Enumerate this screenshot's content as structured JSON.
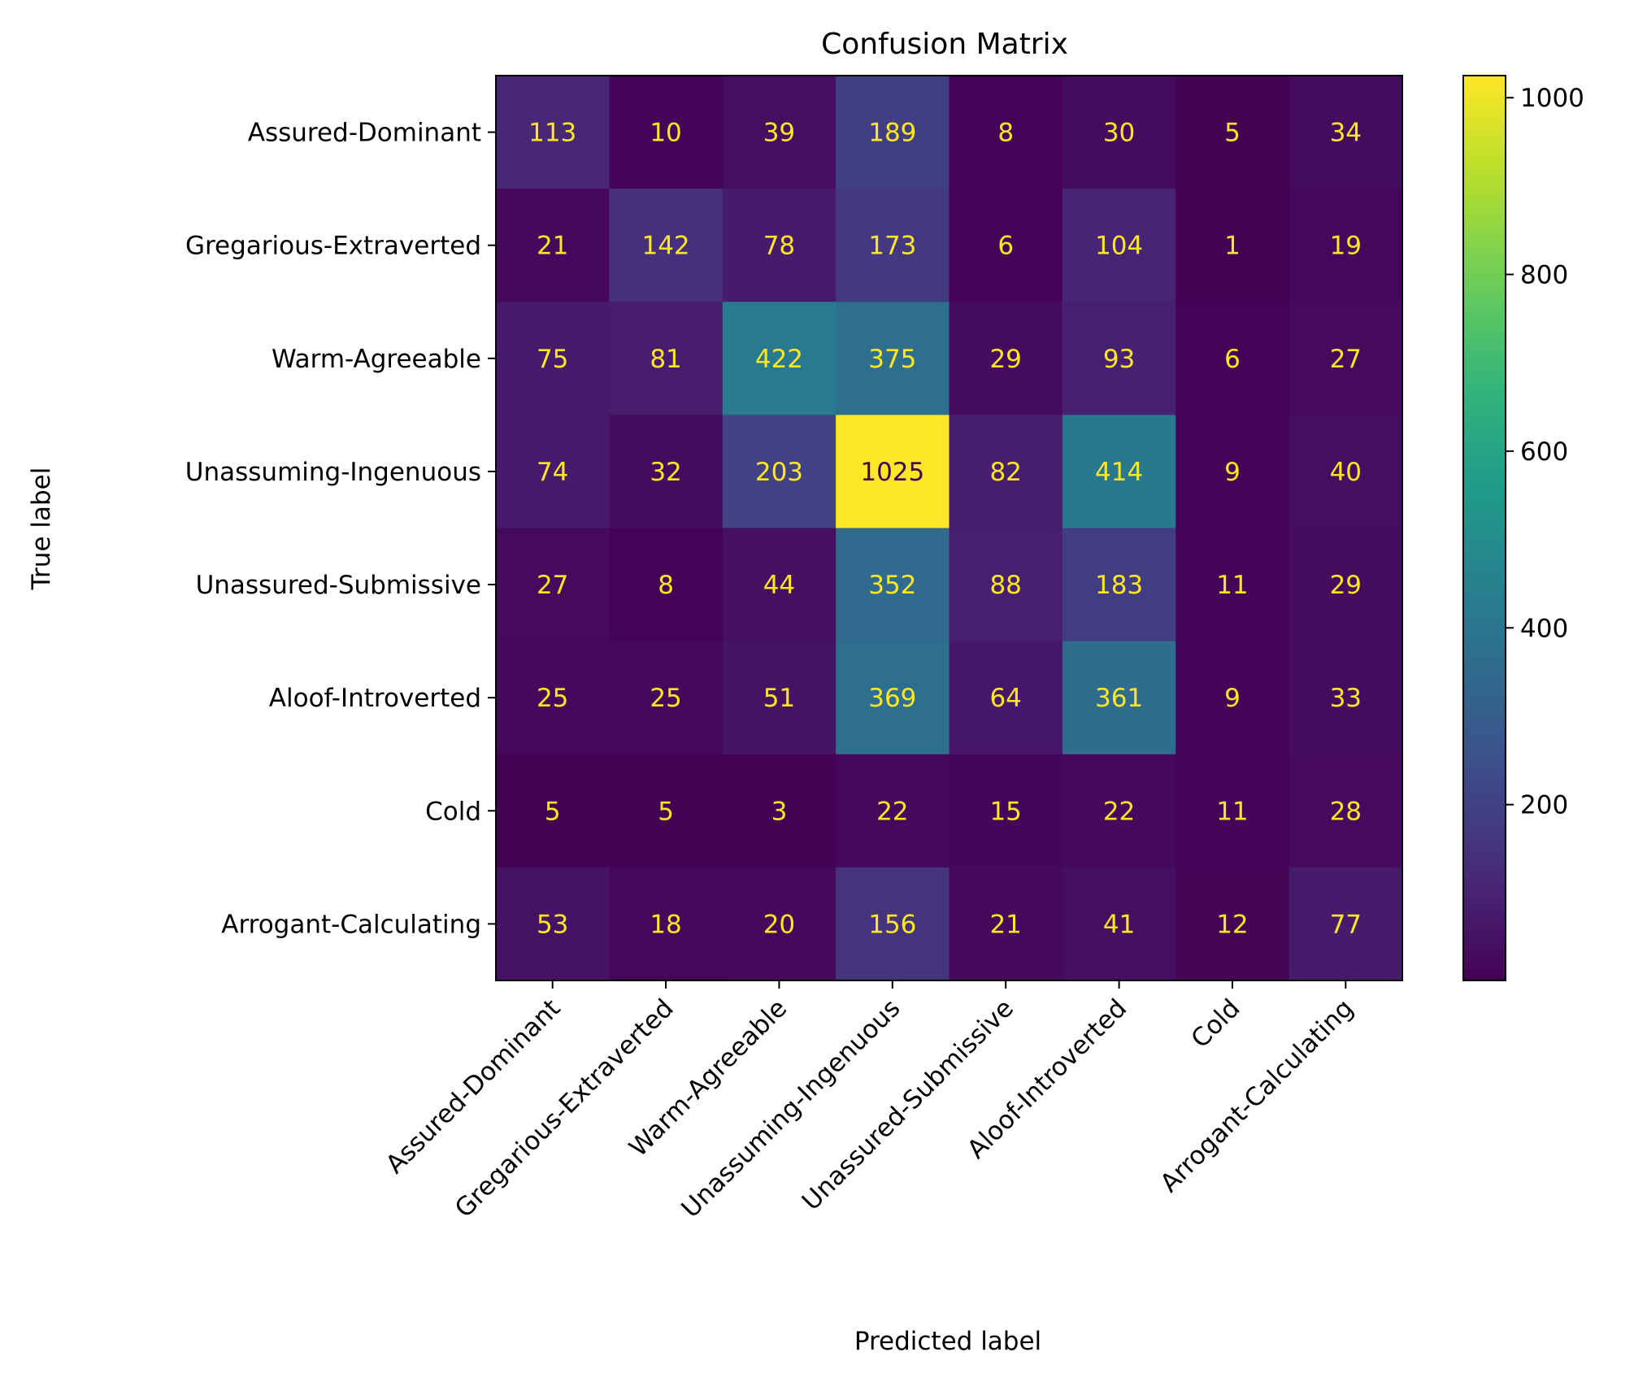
{
  "chart_data": {
    "type": "heatmap",
    "title": "Confusion Matrix",
    "xlabel": "Predicted label",
    "ylabel": "True label",
    "x_categories": [
      "Assured-Dominant",
      "Gregarious-Extraverted",
      "Warm-Agreeable",
      "Unassuming-Ingenuous",
      "Unassured-Submissive",
      "Aloof-Introverted",
      "Cold",
      "Arrogant-Calculating"
    ],
    "y_categories": [
      "Assured-Dominant",
      "Gregarious-Extraverted",
      "Warm-Agreeable",
      "Unassuming-Ingenuous",
      "Unassured-Submissive",
      "Aloof-Introverted",
      "Cold",
      "Arrogant-Calculating"
    ],
    "values": [
      [
        113,
        10,
        39,
        189,
        8,
        30,
        5,
        34
      ],
      [
        21,
        142,
        78,
        173,
        6,
        104,
        1,
        19
      ],
      [
        75,
        81,
        422,
        375,
        29,
        93,
        6,
        27
      ],
      [
        74,
        32,
        203,
        1025,
        82,
        414,
        9,
        40
      ],
      [
        27,
        8,
        44,
        352,
        88,
        183,
        11,
        29
      ],
      [
        25,
        25,
        51,
        369,
        64,
        361,
        9,
        33
      ],
      [
        5,
        5,
        3,
        22,
        15,
        22,
        11,
        28
      ],
      [
        53,
        18,
        20,
        156,
        21,
        41,
        12,
        77
      ]
    ],
    "colormap": "viridis",
    "colorbar": {
      "vmin": 1,
      "vmax": 1025,
      "ticks": [
        200,
        400,
        600,
        800,
        1000
      ]
    },
    "colors": {
      "text_on_dark": "#fde725",
      "text_on_light": "#440154"
    }
  }
}
